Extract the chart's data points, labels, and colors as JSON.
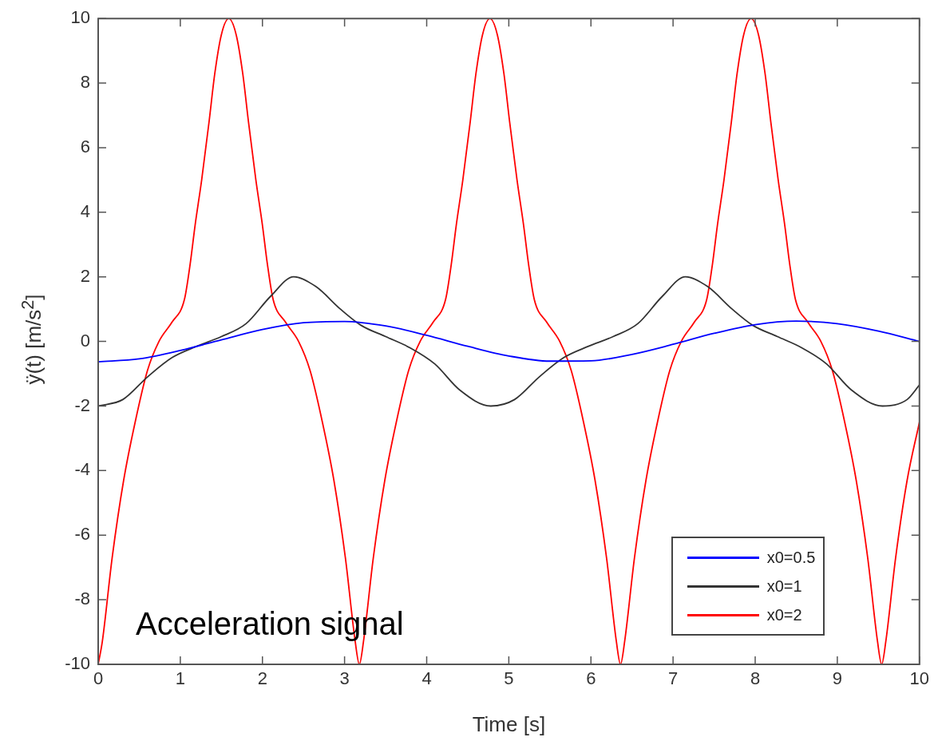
{
  "chart_data": {
    "type": "line",
    "xlabel": "Time [s]",
    "ylabel": "ÿ(t)  [m/s$^{2}$]",
    "xlim": [
      0,
      10
    ],
    "ylim": [
      -10,
      10
    ],
    "xticks": [
      0,
      1,
      2,
      3,
      4,
      5,
      6,
      7,
      8,
      9,
      10
    ],
    "yticks": [
      -10,
      -8,
      -6,
      -4,
      -2,
      0,
      2,
      4,
      6,
      8,
      10
    ],
    "grid": false,
    "legend": "bottom right",
    "marker": "none",
    "line_style": "solid",
    "annotations": [
      "Acceleration signal"
    ],
    "series": [
      {
        "name": "x0=0.5",
        "color": "#0000ff",
        "x": [
          0,
          0.5,
          1,
          1.5,
          2,
          2.5,
          3,
          3.5,
          4,
          4.5,
          5,
          5.5,
          6,
          6.5,
          7,
          7.5,
          8,
          8.5,
          9,
          9.5,
          10
        ],
        "values": [
          -0.63,
          -0.54,
          -0.28,
          0.05,
          0.37,
          0.58,
          0.62,
          0.48,
          0.19,
          -0.15,
          -0.45,
          -0.61,
          -0.6,
          -0.4,
          -0.09,
          0.25,
          0.52,
          0.63,
          0.55,
          0.32,
          0
        ]
      },
      {
        "name": "x0=1",
        "color": "#333333",
        "x": [
          0,
          0.3,
          0.6,
          0.9,
          1.2,
          1.5,
          1.8,
          2.1,
          2.38,
          2.65,
          2.95,
          3.2,
          3.5,
          3.8,
          4.1,
          4.4,
          4.78,
          5.07,
          5.37,
          5.67,
          5.97,
          6.27,
          6.57,
          6.87,
          7.15,
          7.42,
          7.72,
          7.97,
          8.27,
          8.57,
          8.87,
          9.17,
          9.55,
          9.85,
          10
        ],
        "values": [
          -2,
          -1.8,
          -1.1,
          -0.5,
          -0.15,
          0.15,
          0.55,
          1.4,
          2,
          1.7,
          1,
          0.5,
          0.15,
          -0.2,
          -0.7,
          -1.5,
          -2,
          -1.8,
          -1.1,
          -0.5,
          -0.15,
          0.15,
          0.55,
          1.4,
          2,
          1.7,
          1,
          0.5,
          0.15,
          -0.2,
          -0.7,
          -1.5,
          -2,
          -1.8,
          -1.35
        ]
      },
      {
        "name": "x0=2",
        "color": "#ff0000",
        "x": [
          0,
          0.05,
          0.17,
          0.31,
          0.45,
          0.6,
          0.74,
          0.9,
          1.05,
          1.12,
          1.18,
          1.26,
          1.35,
          1.42,
          1.5,
          1.59,
          1.68,
          1.76,
          1.83,
          1.92,
          2,
          2.06,
          2.13,
          2.28,
          2.44,
          2.58,
          2.73,
          2.87,
          3.01,
          3.13,
          3.18,
          3.23,
          3.35,
          3.49,
          3.63,
          3.78,
          3.92,
          4.08,
          4.23,
          4.3,
          4.36,
          4.44,
          4.53,
          4.6,
          4.68,
          4.77,
          4.86,
          4.94,
          5.01,
          5.1,
          5.18,
          5.24,
          5.31,
          5.46,
          5.62,
          5.76,
          5.91,
          6.05,
          6.19,
          6.31,
          6.36,
          6.41,
          6.53,
          6.67,
          6.81,
          6.96,
          7.1,
          7.26,
          7.41,
          7.48,
          7.54,
          7.62,
          7.71,
          7.78,
          7.86,
          7.95,
          8.04,
          8.12,
          8.19,
          8.28,
          8.36,
          8.42,
          8.49,
          8.64,
          8.8,
          8.94,
          9.09,
          9.23,
          9.37,
          9.49,
          9.54,
          9.59,
          9.71,
          9.85,
          10
        ],
        "values": [
          -10,
          -9.3,
          -6.7,
          -4.3,
          -2.5,
          -0.9,
          0,
          0.6,
          1.3,
          2.4,
          3.6,
          5,
          6.8,
          8.3,
          9.5,
          10,
          9.5,
          8.3,
          6.8,
          5,
          3.6,
          2.4,
          1.3,
          0.6,
          0,
          -0.9,
          -2.5,
          -4.3,
          -6.7,
          -9.3,
          -10,
          -9.3,
          -6.7,
          -4.3,
          -2.5,
          -0.9,
          0,
          0.6,
          1.3,
          2.4,
          3.6,
          5,
          6.8,
          8.3,
          9.5,
          10,
          9.5,
          8.3,
          6.8,
          5,
          3.6,
          2.4,
          1.3,
          0.6,
          0,
          -0.9,
          -2.5,
          -4.3,
          -6.7,
          -9.3,
          -10,
          -9.3,
          -6.7,
          -4.3,
          -2.5,
          -0.9,
          0,
          0.6,
          1.3,
          2.4,
          3.6,
          5,
          6.8,
          8.3,
          9.5,
          10,
          9.5,
          8.3,
          6.8,
          5,
          3.6,
          2.4,
          1.3,
          0.6,
          0,
          -0.9,
          -2.5,
          -4.3,
          -6.7,
          -9.3,
          -10,
          -9.3,
          -6.7,
          -4.3,
          -2.5
        ]
      }
    ]
  }
}
